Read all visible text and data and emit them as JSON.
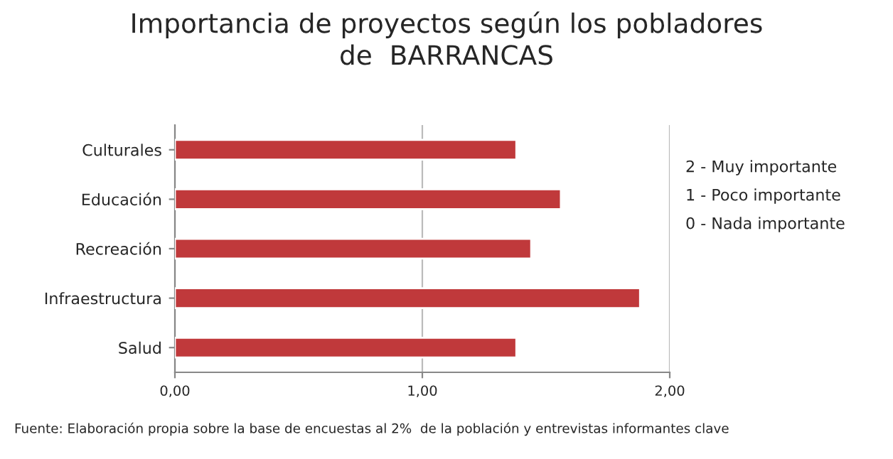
{
  "chart_data": {
    "type": "bar",
    "orientation": "horizontal",
    "title": "Importancia de proyectos según los pobladores\nde  BARRANCAS",
    "categories": [
      "Culturales",
      "Educación",
      "Recreación",
      "Infraestructura",
      "Salud"
    ],
    "values": [
      1.38,
      1.56,
      1.44,
      1.88,
      1.38
    ],
    "color": "#c0393b",
    "xlim": [
      0,
      2
    ],
    "xticks": [
      {
        "value": 0,
        "label": "0,00"
      },
      {
        "value": 1,
        "label": "1,00"
      },
      {
        "value": 2,
        "label": "2,00"
      }
    ],
    "grid": "x",
    "annotations": [
      "2 - Muy importante",
      "1 - Poco importante",
      "0 - Nada importante",
      "Fuente: Elaboración propia sobre la base de encuestas al 2%  de la población y entrevistas informantes clave"
    ]
  }
}
